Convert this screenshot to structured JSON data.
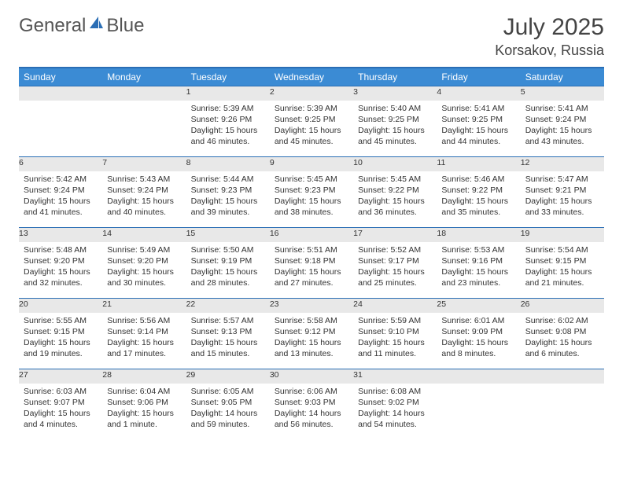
{
  "brand": {
    "name1": "General",
    "name2": "Blue"
  },
  "title": "July 2025",
  "location": "Korsakov, Russia",
  "columns": [
    "Sunday",
    "Monday",
    "Tuesday",
    "Wednesday",
    "Thursday",
    "Friday",
    "Saturday"
  ],
  "colors": {
    "header_bg": "#3b8bd4",
    "header_text": "#ffffff",
    "border": "#2a6eb5",
    "daynum_bg": "#e8e8e8",
    "text": "#333333",
    "logo_gray": "#6b6b6b",
    "logo_blue": "#2a6eb5"
  },
  "weeks": [
    [
      null,
      null,
      {
        "n": "1",
        "sunrise": "Sunrise: 5:39 AM",
        "sunset": "Sunset: 9:26 PM",
        "daylight": "Daylight: 15 hours and 46 minutes."
      },
      {
        "n": "2",
        "sunrise": "Sunrise: 5:39 AM",
        "sunset": "Sunset: 9:25 PM",
        "daylight": "Daylight: 15 hours and 45 minutes."
      },
      {
        "n": "3",
        "sunrise": "Sunrise: 5:40 AM",
        "sunset": "Sunset: 9:25 PM",
        "daylight": "Daylight: 15 hours and 45 minutes."
      },
      {
        "n": "4",
        "sunrise": "Sunrise: 5:41 AM",
        "sunset": "Sunset: 9:25 PM",
        "daylight": "Daylight: 15 hours and 44 minutes."
      },
      {
        "n": "5",
        "sunrise": "Sunrise: 5:41 AM",
        "sunset": "Sunset: 9:24 PM",
        "daylight": "Daylight: 15 hours and 43 minutes."
      }
    ],
    [
      {
        "n": "6",
        "sunrise": "Sunrise: 5:42 AM",
        "sunset": "Sunset: 9:24 PM",
        "daylight": "Daylight: 15 hours and 41 minutes."
      },
      {
        "n": "7",
        "sunrise": "Sunrise: 5:43 AM",
        "sunset": "Sunset: 9:24 PM",
        "daylight": "Daylight: 15 hours and 40 minutes."
      },
      {
        "n": "8",
        "sunrise": "Sunrise: 5:44 AM",
        "sunset": "Sunset: 9:23 PM",
        "daylight": "Daylight: 15 hours and 39 minutes."
      },
      {
        "n": "9",
        "sunrise": "Sunrise: 5:45 AM",
        "sunset": "Sunset: 9:23 PM",
        "daylight": "Daylight: 15 hours and 38 minutes."
      },
      {
        "n": "10",
        "sunrise": "Sunrise: 5:45 AM",
        "sunset": "Sunset: 9:22 PM",
        "daylight": "Daylight: 15 hours and 36 minutes."
      },
      {
        "n": "11",
        "sunrise": "Sunrise: 5:46 AM",
        "sunset": "Sunset: 9:22 PM",
        "daylight": "Daylight: 15 hours and 35 minutes."
      },
      {
        "n": "12",
        "sunrise": "Sunrise: 5:47 AM",
        "sunset": "Sunset: 9:21 PM",
        "daylight": "Daylight: 15 hours and 33 minutes."
      }
    ],
    [
      {
        "n": "13",
        "sunrise": "Sunrise: 5:48 AM",
        "sunset": "Sunset: 9:20 PM",
        "daylight": "Daylight: 15 hours and 32 minutes."
      },
      {
        "n": "14",
        "sunrise": "Sunrise: 5:49 AM",
        "sunset": "Sunset: 9:20 PM",
        "daylight": "Daylight: 15 hours and 30 minutes."
      },
      {
        "n": "15",
        "sunrise": "Sunrise: 5:50 AM",
        "sunset": "Sunset: 9:19 PM",
        "daylight": "Daylight: 15 hours and 28 minutes."
      },
      {
        "n": "16",
        "sunrise": "Sunrise: 5:51 AM",
        "sunset": "Sunset: 9:18 PM",
        "daylight": "Daylight: 15 hours and 27 minutes."
      },
      {
        "n": "17",
        "sunrise": "Sunrise: 5:52 AM",
        "sunset": "Sunset: 9:17 PM",
        "daylight": "Daylight: 15 hours and 25 minutes."
      },
      {
        "n": "18",
        "sunrise": "Sunrise: 5:53 AM",
        "sunset": "Sunset: 9:16 PM",
        "daylight": "Daylight: 15 hours and 23 minutes."
      },
      {
        "n": "19",
        "sunrise": "Sunrise: 5:54 AM",
        "sunset": "Sunset: 9:15 PM",
        "daylight": "Daylight: 15 hours and 21 minutes."
      }
    ],
    [
      {
        "n": "20",
        "sunrise": "Sunrise: 5:55 AM",
        "sunset": "Sunset: 9:15 PM",
        "daylight": "Daylight: 15 hours and 19 minutes."
      },
      {
        "n": "21",
        "sunrise": "Sunrise: 5:56 AM",
        "sunset": "Sunset: 9:14 PM",
        "daylight": "Daylight: 15 hours and 17 minutes."
      },
      {
        "n": "22",
        "sunrise": "Sunrise: 5:57 AM",
        "sunset": "Sunset: 9:13 PM",
        "daylight": "Daylight: 15 hours and 15 minutes."
      },
      {
        "n": "23",
        "sunrise": "Sunrise: 5:58 AM",
        "sunset": "Sunset: 9:12 PM",
        "daylight": "Daylight: 15 hours and 13 minutes."
      },
      {
        "n": "24",
        "sunrise": "Sunrise: 5:59 AM",
        "sunset": "Sunset: 9:10 PM",
        "daylight": "Daylight: 15 hours and 11 minutes."
      },
      {
        "n": "25",
        "sunrise": "Sunrise: 6:01 AM",
        "sunset": "Sunset: 9:09 PM",
        "daylight": "Daylight: 15 hours and 8 minutes."
      },
      {
        "n": "26",
        "sunrise": "Sunrise: 6:02 AM",
        "sunset": "Sunset: 9:08 PM",
        "daylight": "Daylight: 15 hours and 6 minutes."
      }
    ],
    [
      {
        "n": "27",
        "sunrise": "Sunrise: 6:03 AM",
        "sunset": "Sunset: 9:07 PM",
        "daylight": "Daylight: 15 hours and 4 minutes."
      },
      {
        "n": "28",
        "sunrise": "Sunrise: 6:04 AM",
        "sunset": "Sunset: 9:06 PM",
        "daylight": "Daylight: 15 hours and 1 minute."
      },
      {
        "n": "29",
        "sunrise": "Sunrise: 6:05 AM",
        "sunset": "Sunset: 9:05 PM",
        "daylight": "Daylight: 14 hours and 59 minutes."
      },
      {
        "n": "30",
        "sunrise": "Sunrise: 6:06 AM",
        "sunset": "Sunset: 9:03 PM",
        "daylight": "Daylight: 14 hours and 56 minutes."
      },
      {
        "n": "31",
        "sunrise": "Sunrise: 6:08 AM",
        "sunset": "Sunset: 9:02 PM",
        "daylight": "Daylight: 14 hours and 54 minutes."
      },
      null,
      null
    ]
  ]
}
